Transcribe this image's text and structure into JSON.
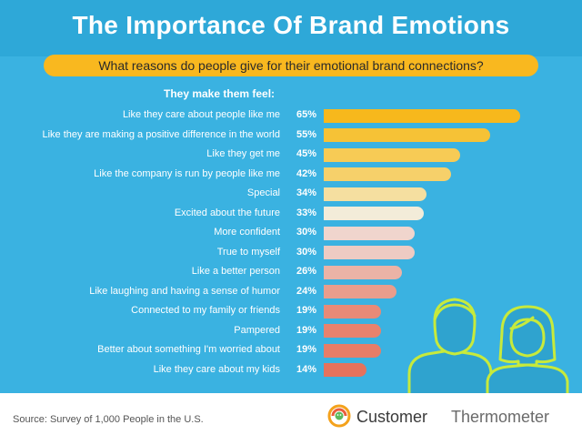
{
  "header": {
    "title": "The Importance Of Brand Emotions",
    "subtitle": "What reasons do people give for their emotional brand connections?"
  },
  "chart_data": {
    "type": "bar",
    "orientation": "horizontal",
    "title": "The Importance Of Brand Emotions",
    "subtitle": "What reasons do people give for their emotional brand connections?",
    "section_label": "They make them feel:",
    "categories": [
      "Like they care about people like me",
      "Like they are making a positive difference in the world",
      "Like they get me",
      "Like the company is run by people like me",
      "Special",
      "Excited about the future",
      "More confident",
      "True to myself",
      "Like a better person",
      "Like laughing and having a sense of humor",
      "Connected to my family or friends",
      "Pampered",
      "Better about something I'm worried about",
      "Like they care about my kids"
    ],
    "values": [
      65,
      55,
      45,
      42,
      34,
      33,
      30,
      30,
      26,
      24,
      19,
      19,
      19,
      14
    ],
    "value_labels": [
      "65%",
      "55%",
      "45%",
      "42%",
      "34%",
      "33%",
      "30%",
      "30%",
      "26%",
      "24%",
      "19%",
      "19%",
      "19%",
      "14%"
    ],
    "unit": "%",
    "bar_colors": [
      "#f7b81c",
      "#f6c236",
      "#f7cb55",
      "#f6d06a",
      "#f5dfa0",
      "#f3ecd9",
      "#f0d5cd",
      "#eecbc3",
      "#ebb3a6",
      "#e99d8c",
      "#e88a77",
      "#e8826d",
      "#e77d67",
      "#e5725c"
    ]
  },
  "colors": {
    "background": "#3ab2e1",
    "title_band": "#2ea8d8",
    "ribbon": "#f9b81f",
    "people_outline": "#c7ea3c"
  },
  "footer": {
    "source": "Source: Survey of 1,000 People in the U.S.",
    "brand_part1": "Customer",
    "brand_part2": "Thermometer",
    "logo_icon": "thermometer-smile-icon"
  }
}
